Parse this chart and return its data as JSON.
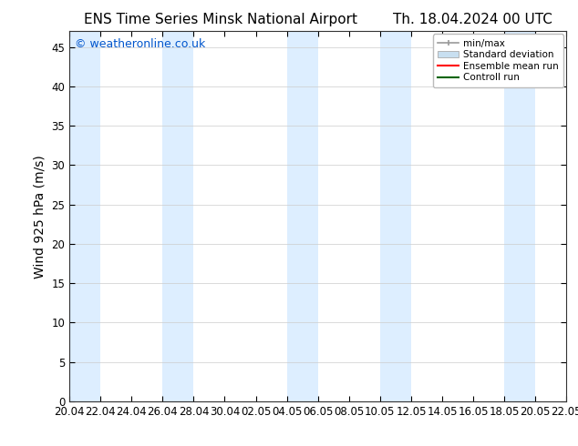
{
  "title_left": "ENS Time Series Minsk National Airport",
  "title_right": "Th. 18.04.2024 00 UTC",
  "ylabel": "Wind 925 hPa (m/s)",
  "watermark": "© weatheronline.co.uk",
  "ylim": [
    0,
    47
  ],
  "yticks": [
    0,
    5,
    10,
    15,
    20,
    25,
    30,
    35,
    40,
    45
  ],
  "xtick_labels": [
    "20.04",
    "22.04",
    "24.04",
    "26.04",
    "28.04",
    "30.04",
    "02.05",
    "04.05",
    "06.05",
    "08.05",
    "10.05",
    "12.05",
    "14.05",
    "16.05",
    "18.05",
    "20.05",
    "22.05"
  ],
  "bg_color": "#ffffff",
  "plot_bg_color": "#ffffff",
  "band_color": "#ddeeff",
  "legend_entries": [
    "min/max",
    "Standard deviation",
    "Ensemble mean run",
    "Controll run"
  ],
  "legend_colors": [
    "#999999",
    "#c8dff0",
    "#ff0000",
    "#006400"
  ],
  "title_fontsize": 11,
  "axis_fontsize": 10,
  "tick_fontsize": 8.5,
  "watermark_color": "#0055cc",
  "watermark_fontsize": 9
}
